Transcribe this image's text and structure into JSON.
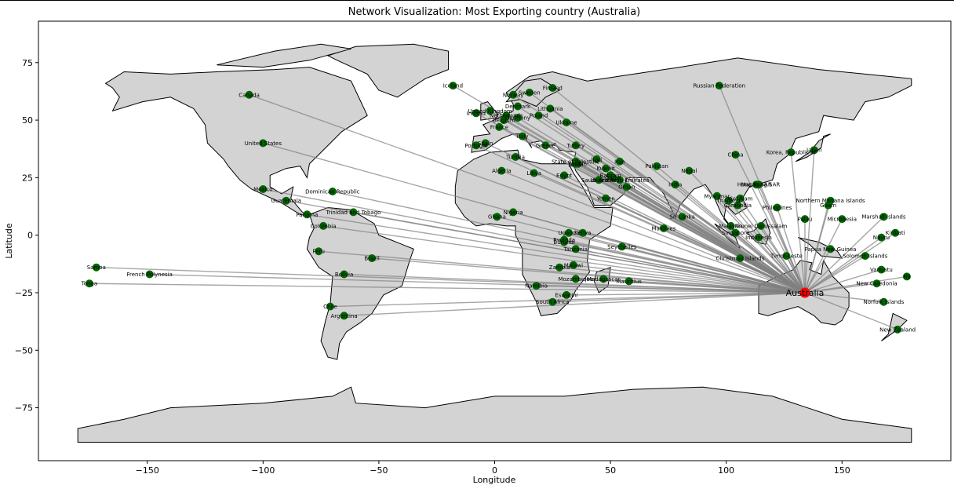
{
  "chart_data": {
    "type": "scatter",
    "subtype": "network-map",
    "title": "Network Visualization: Most Exporting country (Australia)",
    "xlabel": "Longitude",
    "ylabel": "Latitude",
    "xlim": [
      -197,
      197
    ],
    "ylim": [
      -98,
      93
    ],
    "xticks": [
      -150,
      -100,
      -50,
      0,
      50,
      100,
      150
    ],
    "xtick_labels": [
      "−150",
      "−100",
      "−50",
      "0",
      "50",
      "100",
      "150"
    ],
    "yticks": [
      -75,
      -50,
      -25,
      0,
      25,
      50,
      75
    ],
    "ytick_labels": [
      "−75",
      "−50",
      "−25",
      "0",
      "25",
      "50",
      "75"
    ],
    "grid": false,
    "colors": {
      "land": "#d3d3d3",
      "border": "#000000",
      "edge": "#808080",
      "node": "#006400",
      "hub": "#ff0000"
    },
    "hub": {
      "name": "Australia",
      "lon": 134,
      "lat": -25
    },
    "nodes": [
      {
        "name": "Canada",
        "lon": -106,
        "lat": 61
      },
      {
        "name": "United States",
        "lon": -100,
        "lat": 40
      },
      {
        "name": "Mexico",
        "lon": -100,
        "lat": 20
      },
      {
        "name": "Guatemala",
        "lon": -90,
        "lat": 15
      },
      {
        "name": "Panama",
        "lon": -81,
        "lat": 9
      },
      {
        "name": "Dominican Republic",
        "lon": -70,
        "lat": 19
      },
      {
        "name": "Trinidad and Tobago",
        "lon": -61,
        "lat": 10
      },
      {
        "name": "Colombia",
        "lon": -74,
        "lat": 4
      },
      {
        "name": "Peru",
        "lon": -76,
        "lat": -7
      },
      {
        "name": "Brazil",
        "lon": -53,
        "lat": -10
      },
      {
        "name": "Bolivia",
        "lon": -65,
        "lat": -17
      },
      {
        "name": "Chile",
        "lon": -71,
        "lat": -31
      },
      {
        "name": "Argentina",
        "lon": -65,
        "lat": -35
      },
      {
        "name": "Samoa",
        "lon": -172,
        "lat": -14
      },
      {
        "name": "French Polynesia",
        "lon": -149,
        "lat": -17
      },
      {
        "name": "Tonga",
        "lon": -175,
        "lat": -21
      },
      {
        "name": "Iceland",
        "lon": -18,
        "lat": 65
      },
      {
        "name": "United Kingdom",
        "lon": -2,
        "lat": 54
      },
      {
        "name": "Ireland",
        "lon": -8,
        "lat": 53
      },
      {
        "name": "France",
        "lon": 2,
        "lat": 47
      },
      {
        "name": "Spain",
        "lon": -4,
        "lat": 40
      },
      {
        "name": "Portugal",
        "lon": -8,
        "lat": 39
      },
      {
        "name": "Italy",
        "lon": 12,
        "lat": 43
      },
      {
        "name": "Germany",
        "lon": 10,
        "lat": 51
      },
      {
        "name": "Netherlands",
        "lon": 5,
        "lat": 52
      },
      {
        "name": "Belgium",
        "lon": 4,
        "lat": 50
      },
      {
        "name": "Denmark",
        "lon": 10,
        "lat": 56
      },
      {
        "name": "Norway",
        "lon": 8,
        "lat": 61
      },
      {
        "name": "Sweden",
        "lon": 15,
        "lat": 62
      },
      {
        "name": "Finland",
        "lon": 25,
        "lat": 64
      },
      {
        "name": "Poland",
        "lon": 19,
        "lat": 52
      },
      {
        "name": "Lithuania",
        "lon": 24,
        "lat": 55
      },
      {
        "name": "Ukraine",
        "lon": 31,
        "lat": 49
      },
      {
        "name": "Greece",
        "lon": 22,
        "lat": 39
      },
      {
        "name": "Turkey",
        "lon": 35,
        "lat": 39
      },
      {
        "name": "Russian Federation",
        "lon": 97,
        "lat": 65
      },
      {
        "name": "Israel",
        "lon": 35,
        "lat": 31
      },
      {
        "name": "State of Palestine",
        "lon": 35,
        "lat": 32
      },
      {
        "name": "Jordan",
        "lon": 36,
        "lat": 31
      },
      {
        "name": "Iraq",
        "lon": 44,
        "lat": 33
      },
      {
        "name": "Iran",
        "lon": 54,
        "lat": 32
      },
      {
        "name": "Kuwait",
        "lon": 48,
        "lat": 29
      },
      {
        "name": "Bahrain",
        "lon": 50,
        "lat": 26
      },
      {
        "name": "Qatar",
        "lon": 51,
        "lat": 25
      },
      {
        "name": "Saudi Arabia",
        "lon": 45,
        "lat": 24
      },
      {
        "name": "United Arab Emirates",
        "lon": 54,
        "lat": 24
      },
      {
        "name": "Oman",
        "lon": 57,
        "lat": 21
      },
      {
        "name": "Yemen",
        "lon": 48,
        "lat": 16
      },
      {
        "name": "Egypt",
        "lon": 30,
        "lat": 26
      },
      {
        "name": "Libya",
        "lon": 17,
        "lat": 27
      },
      {
        "name": "Tunisia",
        "lon": 9,
        "lat": 34
      },
      {
        "name": "Algeria",
        "lon": 3,
        "lat": 28
      },
      {
        "name": "Pakistan",
        "lon": 70,
        "lat": 30
      },
      {
        "name": "Nepal",
        "lon": 84,
        "lat": 28
      },
      {
        "name": "India",
        "lon": 78,
        "lat": 22
      },
      {
        "name": "Sri Lanka",
        "lon": 81,
        "lat": 8
      },
      {
        "name": "Maldives",
        "lon": 73,
        "lat": 3
      },
      {
        "name": "China",
        "lon": 104,
        "lat": 35
      },
      {
        "name": "Korea, Republic of",
        "lon": 128,
        "lat": 36
      },
      {
        "name": "Japan",
        "lon": 138,
        "lat": 37
      },
      {
        "name": "Macao SAR",
        "lon": 113,
        "lat": 22
      },
      {
        "name": "Hong Kong SAR",
        "lon": 114,
        "lat": 22
      },
      {
        "name": "Myanmar",
        "lon": 96,
        "lat": 17
      },
      {
        "name": "Viet Nam",
        "lon": 106,
        "lat": 16
      },
      {
        "name": "Cambodia",
        "lon": 105,
        "lat": 13
      },
      {
        "name": "Thailand",
        "lon": 101,
        "lat": 15
      },
      {
        "name": "Philippines",
        "lon": 122,
        "lat": 12
      },
      {
        "name": "Malaysia",
        "lon": 102,
        "lat": 4
      },
      {
        "name": "Brunei Darussalam",
        "lon": 115,
        "lat": 4
      },
      {
        "name": "Singapore",
        "lon": 104,
        "lat": 1
      },
      {
        "name": "Indonesia",
        "lon": 114,
        "lat": -1
      },
      {
        "name": "Timor-Leste",
        "lon": 126,
        "lat": -9
      },
      {
        "name": "Christmas Islands",
        "lon": 106,
        "lat": -10
      },
      {
        "name": "Palau",
        "lon": 134,
        "lat": 7
      },
      {
        "name": "Northern Mariana Islands",
        "lon": 145,
        "lat": 15
      },
      {
        "name": "Guam",
        "lon": 144,
        "lat": 13
      },
      {
        "name": "Micronesia",
        "lon": 150,
        "lat": 7
      },
      {
        "name": "Marshall Islands",
        "lon": 168,
        "lat": 8
      },
      {
        "name": "Kiribati",
        "lon": 173,
        "lat": 1
      },
      {
        "name": "Nauru",
        "lon": 167,
        "lat": -1
      },
      {
        "name": "Papua New Guinea",
        "lon": 145,
        "lat": -6
      },
      {
        "name": "Solomon Islands",
        "lon": 160,
        "lat": -9
      },
      {
        "name": "Vanuatu",
        "lon": 167,
        "lat": -15
      },
      {
        "name": "Fiji",
        "lon": 178,
        "lat": -18
      },
      {
        "name": "New Caledonia",
        "lon": 165,
        "lat": -21
      },
      {
        "name": "Norfolk Islands",
        "lon": 168,
        "lat": -29
      },
      {
        "name": "New Zealand",
        "lon": 174,
        "lat": -41
      },
      {
        "name": "Nigeria",
        "lon": 8,
        "lat": 10
      },
      {
        "name": "Ghana",
        "lon": 1,
        "lat": 8
      },
      {
        "name": "Uganda",
        "lon": 32,
        "lat": 1
      },
      {
        "name": "Kenya",
        "lon": 38,
        "lat": 1
      },
      {
        "name": "Rwanda",
        "lon": 30,
        "lat": -2
      },
      {
        "name": "Burundi",
        "lon": 30,
        "lat": -3
      },
      {
        "name": "Tanzania",
        "lon": 35,
        "lat": -6
      },
      {
        "name": "Seychelles",
        "lon": 55,
        "lat": -5
      },
      {
        "name": "Malawi",
        "lon": 34,
        "lat": -13
      },
      {
        "name": "Zambia",
        "lon": 28,
        "lat": -14
      },
      {
        "name": "Mozambique",
        "lon": 35,
        "lat": -19
      },
      {
        "name": "Madagascar",
        "lon": 47,
        "lat": -19
      },
      {
        "name": "Mauritius",
        "lon": 58,
        "lat": -20
      },
      {
        "name": "Namibia",
        "lon": 18,
        "lat": -22
      },
      {
        "name": "Eswatini",
        "lon": 31,
        "lat": -26
      },
      {
        "name": "South Africa",
        "lon": 25,
        "lat": -29
      }
    ]
  }
}
